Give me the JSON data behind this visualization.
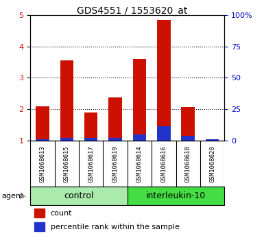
{
  "title": "GDS4551 / 1553620_at",
  "samples": [
    "GSM1068613",
    "GSM1068615",
    "GSM1068617",
    "GSM1068619",
    "GSM1068614",
    "GSM1068616",
    "GSM1068618",
    "GSM1068620"
  ],
  "red_values": [
    2.1,
    3.55,
    1.9,
    2.38,
    3.6,
    4.85,
    2.08,
    1.05
  ],
  "blue_values": [
    1.05,
    1.1,
    1.1,
    1.1,
    1.2,
    1.45,
    1.15,
    1.05
  ],
  "ylim": [
    1,
    5
  ],
  "yticks": [
    1,
    2,
    3,
    4,
    5
  ],
  "ytick_labels": [
    "1",
    "2",
    "3",
    "4",
    "5"
  ],
  "right_ytick_labels": [
    "0",
    "25",
    "50",
    "75",
    "100%"
  ],
  "groups": [
    {
      "label": "control",
      "start": 0,
      "end": 4,
      "color": "#aaeaaa"
    },
    {
      "label": "interleukin-10",
      "start": 4,
      "end": 8,
      "color": "#44dd44"
    }
  ],
  "bar_width": 0.55,
  "red_color": "#cc1100",
  "blue_color": "#2233cc",
  "legend_red": "count",
  "legend_blue": "percentile rank within the sample",
  "tick_label_color_left": "#cc1100",
  "tick_label_color_right": "#0000cc",
  "sample_bg_color": "#cccccc",
  "agent_arrow_color": "#888888"
}
